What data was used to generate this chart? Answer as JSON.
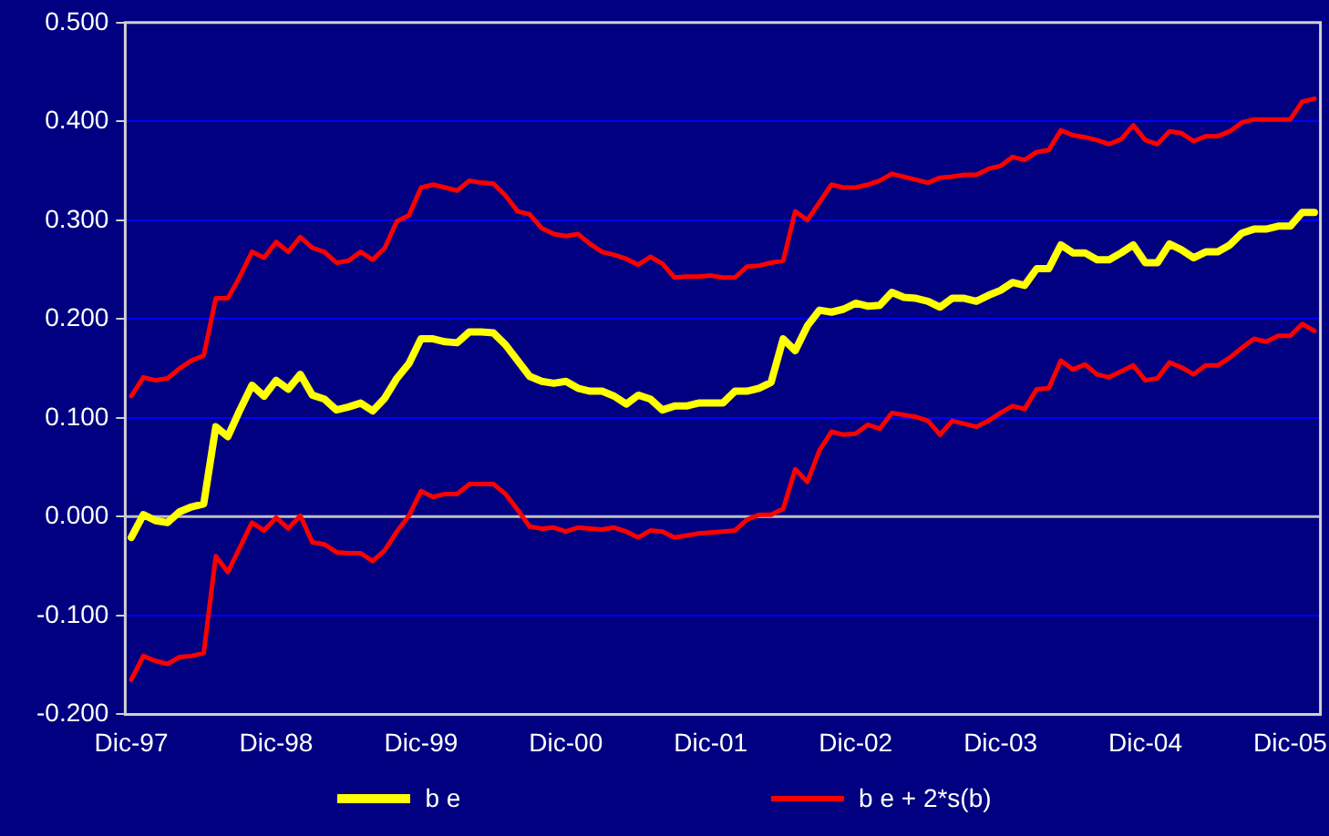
{
  "chart_data": {
    "type": "line",
    "categories": [
      "Dic-97",
      null,
      null,
      null,
      null,
      null,
      null,
      null,
      null,
      null,
      null,
      null,
      "Dic-98",
      null,
      null,
      null,
      null,
      null,
      null,
      null,
      null,
      null,
      null,
      null,
      "Dic-99",
      null,
      null,
      null,
      null,
      null,
      null,
      null,
      null,
      null,
      null,
      null,
      "Dic-00",
      null,
      null,
      null,
      null,
      null,
      null,
      null,
      null,
      null,
      null,
      null,
      "Dic-01",
      null,
      null,
      null,
      null,
      null,
      null,
      null,
      null,
      null,
      null,
      null,
      "Dic-02",
      null,
      null,
      null,
      null,
      null,
      null,
      null,
      null,
      null,
      null,
      null,
      "Dic-03",
      null,
      null,
      null,
      null,
      null,
      null,
      null,
      null,
      null,
      null,
      null,
      "Dic-04",
      null,
      null,
      null,
      null,
      null,
      null,
      null,
      null,
      null,
      null,
      null,
      "Dic-05",
      null,
      null
    ],
    "series": [
      {
        "name": "b e",
        "color": "#ffff00",
        "values": [
          -0.021,
          0.002,
          -0.004,
          -0.006,
          0.005,
          0.01,
          0.013,
          0.091,
          0.081,
          0.108,
          0.133,
          0.122,
          0.138,
          0.129,
          0.144,
          0.123,
          0.119,
          0.108,
          0.111,
          0.115,
          0.107,
          0.12,
          0.14,
          0.155,
          0.18,
          0.18,
          0.177,
          0.176,
          0.187,
          0.187,
          0.186,
          0.174,
          0.158,
          0.142,
          0.137,
          0.135,
          0.137,
          0.13,
          0.127,
          0.127,
          0.122,
          0.114,
          0.123,
          0.119,
          0.108,
          0.112,
          0.112,
          0.115,
          0.115,
          0.115,
          0.127,
          0.127,
          0.13,
          0.136,
          0.18,
          0.168,
          0.193,
          0.209,
          0.207,
          0.21,
          0.216,
          0.213,
          0.214,
          0.227,
          0.222,
          0.221,
          0.218,
          0.212,
          0.221,
          0.221,
          0.218,
          0.224,
          0.229,
          0.237,
          0.234,
          0.251,
          0.251,
          0.275,
          0.267,
          0.267,
          0.26,
          0.26,
          0.267,
          0.275,
          0.257,
          0.257,
          0.276,
          0.27,
          0.262,
          0.268,
          0.268,
          0.275,
          0.287,
          0.291,
          0.291,
          0.294,
          0.294,
          0.308,
          0.308
        ]
      },
      {
        "name": "b e + 2*s(b)",
        "color": "#ff0000",
        "values": [
          0.122,
          0.141,
          0.138,
          0.14,
          0.15,
          0.158,
          0.163,
          0.221,
          0.221,
          0.243,
          0.268,
          0.262,
          0.278,
          0.268,
          0.283,
          0.272,
          0.268,
          0.257,
          0.259,
          0.268,
          0.26,
          0.272,
          0.299,
          0.305,
          0.333,
          0.336,
          0.333,
          0.33,
          0.34,
          0.338,
          0.337,
          0.325,
          0.309,
          0.306,
          0.292,
          0.286,
          0.284,
          0.286,
          0.276,
          0.268,
          0.265,
          0.261,
          0.255,
          0.263,
          0.256,
          0.242,
          0.243,
          0.243,
          0.244,
          0.242,
          0.242,
          0.253,
          0.254,
          0.257,
          0.259,
          0.309,
          0.3,
          0.318,
          0.336,
          0.333,
          0.333,
          0.336,
          0.34,
          0.347,
          0.344,
          0.341,
          0.338,
          0.343,
          0.344,
          0.346,
          0.346,
          0.352,
          0.355,
          0.364,
          0.361,
          0.369,
          0.371,
          0.391,
          0.386,
          0.384,
          0.381,
          0.377,
          0.382,
          0.396,
          0.381,
          0.377,
          0.39,
          0.388,
          0.38,
          0.385,
          0.385,
          0.39,
          0.399,
          0.402,
          0.402,
          0.402,
          0.402,
          0.42,
          0.423
        ]
      },
      {
        "color": "#ff0000",
        "values": [
          -0.165,
          -0.141,
          -0.146,
          -0.149,
          -0.142,
          -0.141,
          -0.138,
          -0.04,
          -0.056,
          -0.031,
          -0.006,
          -0.014,
          -0.001,
          -0.012,
          0.001,
          -0.026,
          -0.028,
          -0.036,
          -0.037,
          -0.037,
          -0.045,
          -0.034,
          -0.015,
          0.001,
          0.026,
          0.02,
          0.023,
          0.023,
          0.033,
          0.033,
          0.033,
          0.023,
          0.007,
          -0.01,
          -0.012,
          -0.011,
          -0.015,
          -0.011,
          -0.012,
          -0.013,
          -0.011,
          -0.015,
          -0.021,
          -0.014,
          -0.015,
          -0.021,
          -0.019,
          -0.017,
          -0.016,
          -0.015,
          -0.014,
          -0.003,
          0.002,
          0.002,
          0.008,
          0.048,
          0.035,
          0.067,
          0.086,
          0.083,
          0.084,
          0.093,
          0.089,
          0.105,
          0.103,
          0.101,
          0.097,
          0.083,
          0.097,
          0.094,
          0.091,
          0.097,
          0.105,
          0.112,
          0.109,
          0.129,
          0.13,
          0.158,
          0.149,
          0.154,
          0.144,
          0.141,
          0.147,
          0.153,
          0.138,
          0.14,
          0.156,
          0.151,
          0.144,
          0.153,
          0.153,
          0.161,
          0.171,
          0.18,
          0.177,
          0.183,
          0.183,
          0.195,
          0.188
        ]
      }
    ],
    "ylim": [
      -0.2,
      0.5
    ],
    "yticks": [
      {
        "value": -0.2,
        "label": "-0.200"
      },
      {
        "value": -0.1,
        "label": "-0.100"
      },
      {
        "value": 0,
        "label": "0.000"
      },
      {
        "value": 0.1,
        "label": "0.100"
      },
      {
        "value": 0.2,
        "label": "0.200"
      },
      {
        "value": 0.3,
        "label": "0.300"
      },
      {
        "value": 0.4,
        "label": "0.400"
      },
      {
        "value": 0.5,
        "label": "0.500"
      }
    ],
    "ref_lines": [
      {
        "axis": "y",
        "value": 0,
        "color": "#c0c0c0"
      }
    ],
    "grid": "y",
    "legend": "bottom",
    "marker": "none",
    "line_style": "solid"
  }
}
